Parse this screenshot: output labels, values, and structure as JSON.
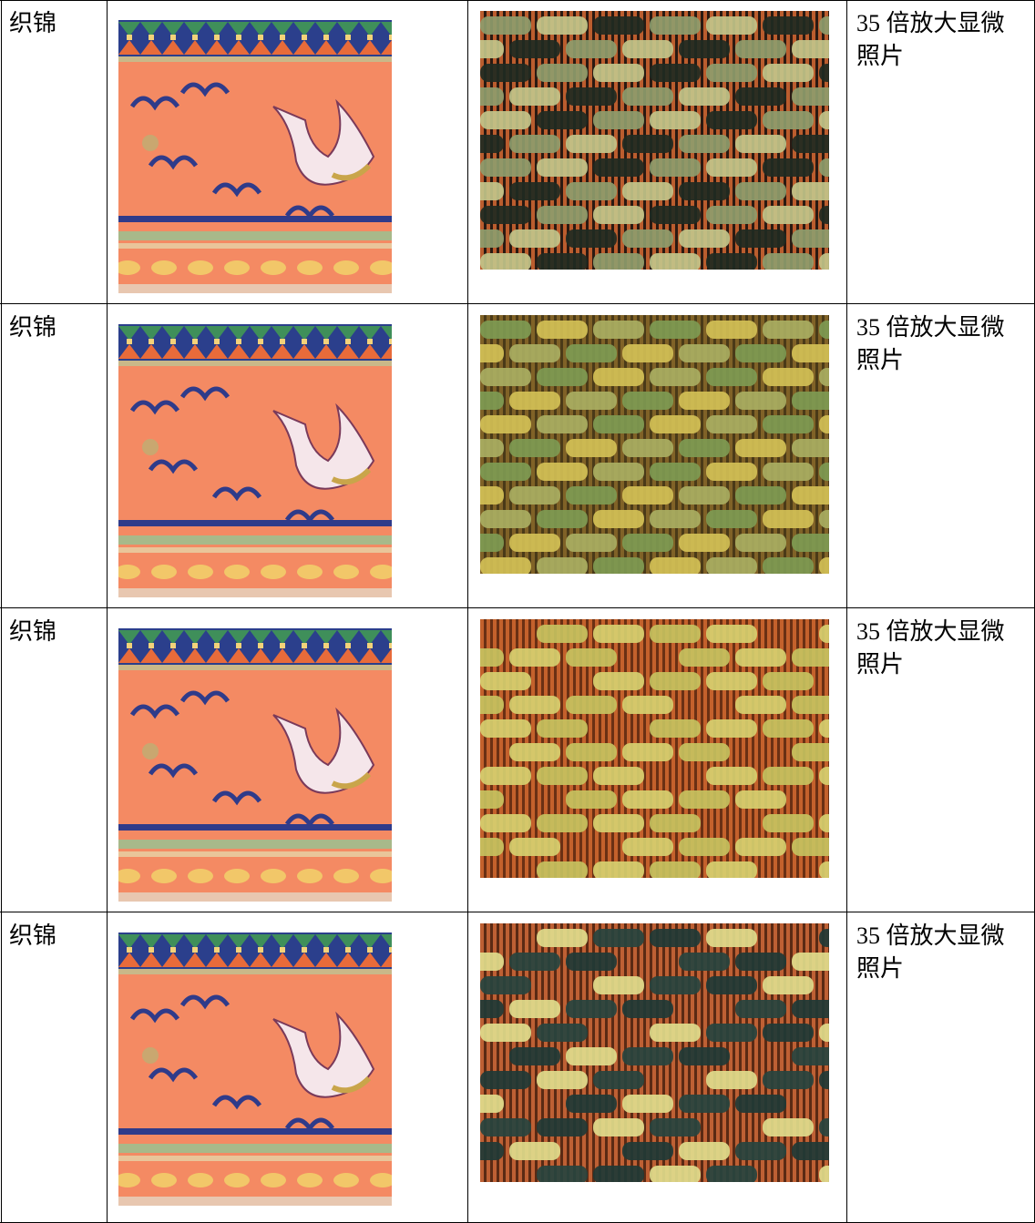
{
  "table": {
    "rows": [
      {
        "material": "织锦",
        "caption": "35 倍放大显微照片"
      },
      {
        "material": "织锦",
        "caption": "35 倍放大显微照片"
      },
      {
        "material": "织锦",
        "caption": "35 倍放大显微照片"
      },
      {
        "material": "织锦",
        "caption": "35 倍放大显微照片"
      }
    ]
  }
}
